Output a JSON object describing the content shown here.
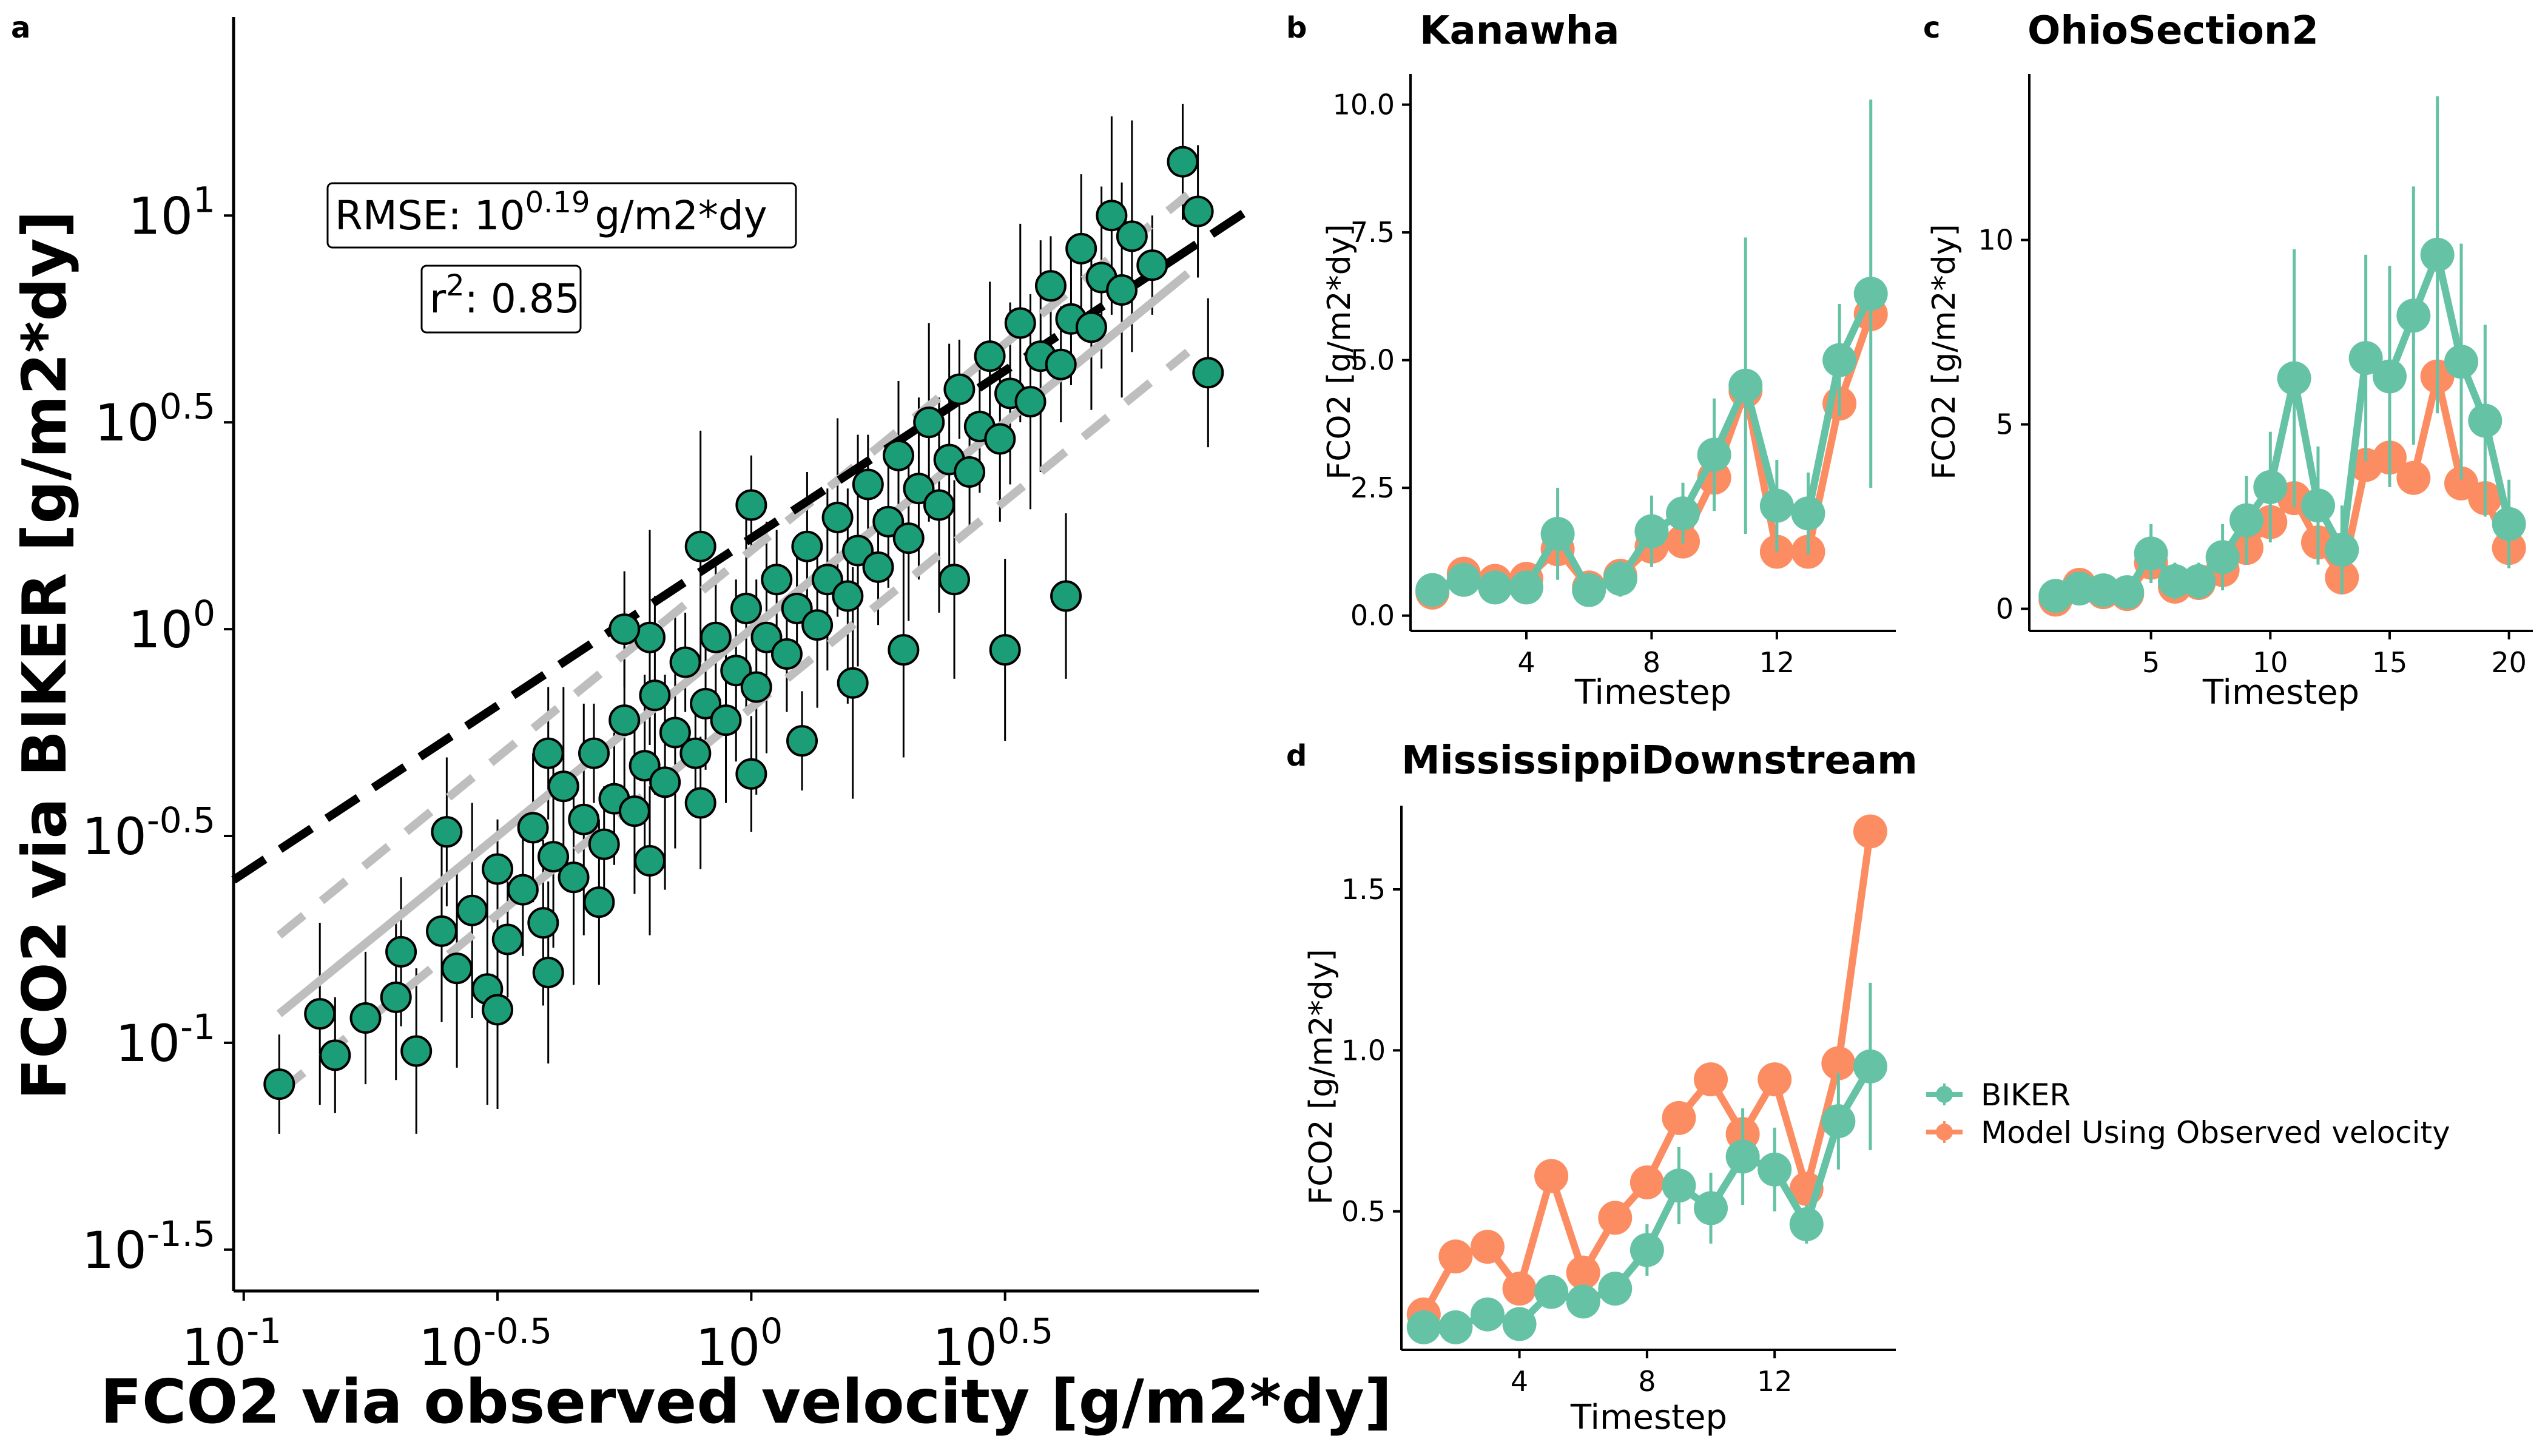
{
  "panel_labels": {
    "a": "a",
    "b": "b",
    "c": "c",
    "d": "d"
  },
  "colors": {
    "biker": "#66C2A5",
    "model": "#FC8D62",
    "scatter_fill": "#1B9E77",
    "fit_line": "#000000",
    "one_to_one": "#BEBEBE"
  },
  "chart_data": [
    {
      "type": "scatter",
      "panel": "a",
      "xlabel": "FCO2 via observed velocity [g/m2*dy]",
      "ylabel": "FCO2 via BIKER [g/m2*dy]",
      "log_scale": true,
      "xlim_log10": [
        -1.02,
        1.0
      ],
      "ylim_log10": [
        -1.6,
        1.48
      ],
      "x_ticks": [
        {
          "base": "10",
          "exp": "-1",
          "value": -1
        },
        {
          "base": "10",
          "exp": "-0.5",
          "value": -0.5
        },
        {
          "base": "10",
          "exp": "0",
          "value": 0
        },
        {
          "base": "10",
          "exp": "0.5",
          "value": 0.5
        }
      ],
      "y_ticks": [
        {
          "base": "10",
          "exp": "-1.5",
          "value": -1.5
        },
        {
          "base": "10",
          "exp": "-1",
          "value": -1
        },
        {
          "base": "10",
          "exp": "-0.5",
          "value": -0.5
        },
        {
          "base": "10",
          "exp": "0",
          "value": 0
        },
        {
          "base": "10",
          "exp": "0.5",
          "value": 0.5
        },
        {
          "base": "10",
          "exp": "1",
          "value": 1
        }
      ],
      "annotations": {
        "rmse_prefix": "RMSE: 10",
        "rmse_exp": "0.19",
        "rmse_suffix": "g/m2*dy",
        "r2_prefix": "r",
        "r2_exp": "2",
        "r2_suffix": ": 0.85"
      },
      "fit_line_log10": {
        "slope": 0.81,
        "intercept": 0.22
      },
      "one_to_one_band_log10": 0.19,
      "grid": false,
      "points_log10": [
        [
          -0.93,
          -1.1
        ],
        [
          -0.82,
          -1.03
        ],
        [
          -0.76,
          -0.94
        ],
        [
          -0.69,
          -0.78
        ],
        [
          -0.66,
          -1.02
        ],
        [
          -0.61,
          -0.73
        ],
        [
          -0.58,
          -0.82
        ],
        [
          -0.55,
          -0.68
        ],
        [
          -0.52,
          -0.87
        ],
        [
          -0.5,
          -0.58
        ],
        [
          -0.48,
          -0.75
        ],
        [
          -0.45,
          -0.63
        ],
        [
          -0.43,
          -0.48
        ],
        [
          -0.41,
          -0.71
        ],
        [
          -0.39,
          -0.55
        ],
        [
          -0.37,
          -0.38
        ],
        [
          -0.35,
          -0.6
        ],
        [
          -0.33,
          -0.46
        ],
        [
          -0.31,
          -0.3
        ],
        [
          -0.29,
          -0.52
        ],
        [
          -0.27,
          -0.41
        ],
        [
          -0.25,
          -0.22
        ],
        [
          -0.23,
          -0.44
        ],
        [
          -0.21,
          -0.33
        ],
        [
          -0.19,
          -0.16
        ],
        [
          -0.17,
          -0.37
        ],
        [
          -0.15,
          -0.25
        ],
        [
          -0.13,
          -0.08
        ],
        [
          -0.11,
          -0.3
        ],
        [
          -0.09,
          -0.18
        ],
        [
          -0.07,
          -0.02
        ],
        [
          -0.05,
          -0.22
        ],
        [
          -0.03,
          -0.1
        ],
        [
          -0.01,
          0.05
        ],
        [
          0.01,
          -0.14
        ],
        [
          0.03,
          -0.02
        ],
        [
          0.05,
          0.12
        ],
        [
          0.07,
          -0.06
        ],
        [
          0.09,
          0.05
        ],
        [
          0.11,
          0.2
        ],
        [
          0.13,
          0.01
        ],
        [
          0.15,
          0.12
        ],
        [
          0.17,
          0.27
        ],
        [
          0.19,
          0.08
        ],
        [
          0.21,
          0.19
        ],
        [
          0.23,
          0.35
        ],
        [
          0.25,
          0.15
        ],
        [
          0.27,
          0.26
        ],
        [
          0.29,
          0.42
        ],
        [
          0.31,
          0.22
        ],
        [
          0.33,
          0.34
        ],
        [
          0.35,
          0.5
        ],
        [
          0.37,
          0.3
        ],
        [
          0.39,
          0.41
        ],
        [
          0.41,
          0.58
        ],
        [
          0.43,
          0.38
        ],
        [
          0.45,
          0.49
        ],
        [
          0.47,
          0.66
        ],
        [
          0.49,
          0.46
        ],
        [
          0.51,
          0.57
        ],
        [
          0.53,
          0.74
        ],
        [
          0.55,
          0.55
        ],
        [
          0.57,
          0.66
        ],
        [
          0.59,
          0.83
        ],
        [
          0.61,
          0.64
        ],
        [
          0.63,
          0.75
        ],
        [
          0.65,
          0.92
        ],
        [
          0.67,
          0.73
        ],
        [
          0.69,
          0.85
        ],
        [
          0.71,
          1.0
        ],
        [
          0.73,
          0.82
        ],
        [
          0.75,
          0.95
        ],
        [
          0.79,
          0.88
        ],
        [
          0.85,
          1.13
        ],
        [
          0.88,
          1.01
        ],
        [
          0.9,
          0.62
        ],
        [
          0.62,
          0.08
        ],
        [
          0.5,
          -0.05
        ],
        [
          0.4,
          0.12
        ],
        [
          0.3,
          -0.05
        ],
        [
          0.2,
          -0.13
        ],
        [
          0.1,
          -0.27
        ],
        [
          0.0,
          -0.35
        ],
        [
          -0.1,
          -0.42
        ],
        [
          -0.2,
          -0.56
        ],
        [
          -0.3,
          -0.66
        ],
        [
          -0.4,
          -0.83
        ],
        [
          -0.5,
          -0.92
        ],
        [
          -0.2,
          -0.02
        ],
        [
          -0.1,
          0.2
        ],
        [
          0.0,
          0.3
        ],
        [
          -0.25,
          0.0
        ],
        [
          -0.4,
          -0.3
        ],
        [
          -0.6,
          -0.49
        ],
        [
          -0.7,
          -0.89
        ],
        [
          -0.85,
          -0.93
        ]
      ]
    },
    {
      "type": "line",
      "panel": "b",
      "title": "Kanawha",
      "xlabel": "Timestep",
      "ylabel": "FCO2 [g/m2*dy]",
      "xlim": [
        0.3,
        15.8
      ],
      "ylim": [
        -0.3,
        10.6
      ],
      "x_ticks": [
        4,
        8,
        12
      ],
      "y_ticks": [
        {
          "value": 0,
          "label": "0.0"
        },
        {
          "value": 2.5,
          "label": "2.5"
        },
        {
          "value": 5,
          "label": "5.0"
        },
        {
          "value": 7.5,
          "label": "7.5"
        },
        {
          "value": 10,
          "label": "10.0"
        }
      ],
      "x": [
        1,
        2,
        3,
        4,
        5,
        6,
        7,
        8,
        9,
        10,
        11,
        12,
        13,
        14,
        15
      ],
      "series": [
        {
          "name": "Model Using Observed velocity",
          "color": "#FC8D62",
          "values": [
            0.45,
            0.82,
            0.68,
            0.72,
            1.3,
            0.55,
            0.78,
            1.35,
            1.45,
            2.7,
            4.4,
            1.25,
            1.25,
            4.15,
            5.9
          ]
        },
        {
          "name": "BIKER",
          "color": "#66C2A5",
          "values": [
            0.5,
            0.7,
            0.55,
            0.55,
            1.6,
            0.5,
            0.72,
            1.65,
            2.0,
            3.15,
            4.5,
            2.15,
            2.0,
            5.0,
            6.3
          ],
          "err": [
            0.3,
            0.3,
            0.25,
            0.3,
            0.9,
            0.25,
            0.35,
            0.7,
            0.6,
            1.1,
            2.9,
            0.9,
            0.8,
            1.1,
            3.8
          ]
        }
      ]
    },
    {
      "type": "line",
      "panel": "c",
      "title": "OhioSection2",
      "xlabel": "Timestep",
      "ylabel": "FCO2 [g/m2*dy]",
      "xlim": [
        -0.1,
        21
      ],
      "ylim": [
        -0.6,
        14.5
      ],
      "x_ticks": [
        5,
        10,
        15,
        20
      ],
      "y_ticks": [
        {
          "value": 0,
          "label": "0"
        },
        {
          "value": 5,
          "label": "5"
        },
        {
          "value": 10,
          "label": "10"
        }
      ],
      "x": [
        1,
        2,
        3,
        4,
        5,
        6,
        7,
        8,
        9,
        10,
        11,
        12,
        13,
        14,
        15,
        16,
        17,
        18,
        19,
        20
      ],
      "series": [
        {
          "name": "Model Using Observed velocity",
          "color": "#FC8D62",
          "values": [
            0.25,
            0.65,
            0.45,
            0.4,
            1.25,
            0.6,
            0.7,
            1.05,
            1.65,
            2.35,
            3.0,
            1.8,
            0.85,
            3.9,
            4.1,
            3.55,
            6.3,
            3.4,
            3.0,
            1.65
          ]
        },
        {
          "name": "BIKER",
          "color": "#66C2A5",
          "values": [
            0.35,
            0.55,
            0.5,
            0.45,
            1.5,
            0.75,
            0.75,
            1.4,
            2.4,
            3.3,
            6.25,
            2.8,
            1.6,
            6.8,
            6.3,
            7.95,
            9.6,
            6.7,
            5.1,
            2.3
          ],
          "err": [
            0.3,
            0.35,
            0.3,
            0.35,
            0.8,
            0.5,
            0.5,
            0.9,
            1.2,
            1.5,
            3.5,
            1.6,
            1.2,
            2.8,
            3.0,
            3.5,
            4.3,
            3.2,
            2.6,
            1.2
          ]
        }
      ]
    },
    {
      "type": "line",
      "panel": "d",
      "title": "MississippiDownstream",
      "xlabel": "Timestep",
      "ylabel": "FCO2 [g/m2*dy]",
      "xlim": [
        0.3,
        15.8
      ],
      "ylim": [
        0.07,
        1.76
      ],
      "x_ticks": [
        4,
        8,
        12
      ],
      "y_ticks": [
        {
          "value": 0.5,
          "label": "0.5"
        },
        {
          "value": 1.0,
          "label": "1.0"
        },
        {
          "value": 1.5,
          "label": "1.5"
        }
      ],
      "x": [
        1,
        2,
        3,
        4,
        5,
        6,
        7,
        8,
        9,
        10,
        11,
        12,
        13,
        14,
        15
      ],
      "series": [
        {
          "name": "Model Using Observed velocity",
          "color": "#FC8D62",
          "values": [
            0.18,
            0.36,
            0.39,
            0.26,
            0.61,
            0.31,
            0.48,
            0.59,
            0.79,
            0.91,
            0.74,
            0.91,
            0.57,
            0.96,
            1.68
          ]
        },
        {
          "name": "BIKER",
          "color": "#66C2A5",
          "values": [
            0.14,
            0.14,
            0.18,
            0.15,
            0.25,
            0.22,
            0.26,
            0.38,
            0.58,
            0.51,
            0.67,
            0.63,
            0.46,
            0.78,
            0.95
          ],
          "err": [
            0.03,
            0.03,
            0.04,
            0.03,
            0.05,
            0.05,
            0.05,
            0.08,
            0.12,
            0.11,
            0.15,
            0.13,
            0.06,
            0.15,
            0.26
          ]
        }
      ]
    }
  ],
  "legend": {
    "items": [
      {
        "label": "BIKER",
        "color": "#66C2A5"
      },
      {
        "label": "Model Using Observed velocity",
        "color": "#FC8D62"
      }
    ]
  }
}
